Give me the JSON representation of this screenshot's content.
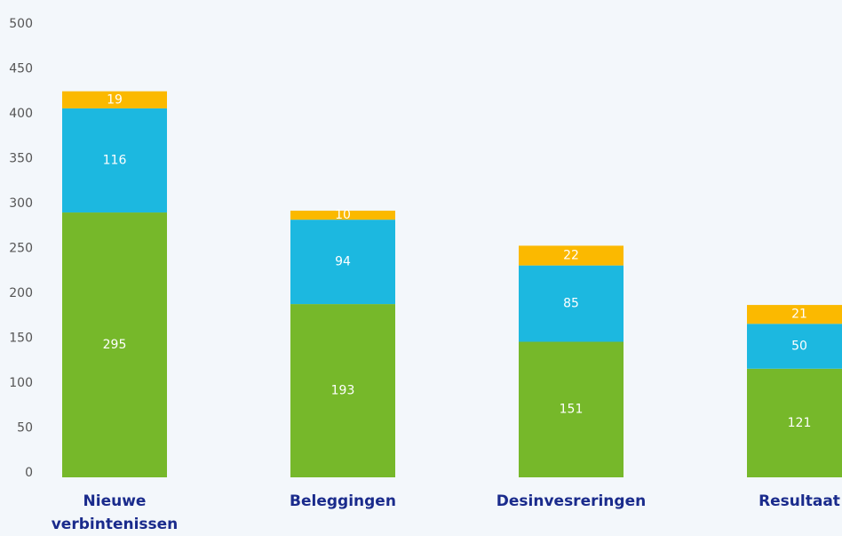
{
  "chart_data": {
    "type": "stacked_bar",
    "categories": [
      "Nieuwe verbintenissen",
      "Beleggingen",
      "Desinvesreringen",
      "Resultaat"
    ],
    "series": [
      {
        "color": "#76b82a",
        "values": [
          295,
          193,
          151,
          121
        ]
      },
      {
        "color": "#1cb8e0",
        "values": [
          116,
          94,
          85,
          50
        ]
      },
      {
        "color": "#fbb900",
        "values": [
          19,
          10,
          22,
          21
        ]
      }
    ],
    "ylim": [
      0,
      500
    ],
    "yticks": [
      0,
      50,
      100,
      150,
      200,
      250,
      300,
      350,
      400,
      450,
      500
    ],
    "grid": false
  }
}
